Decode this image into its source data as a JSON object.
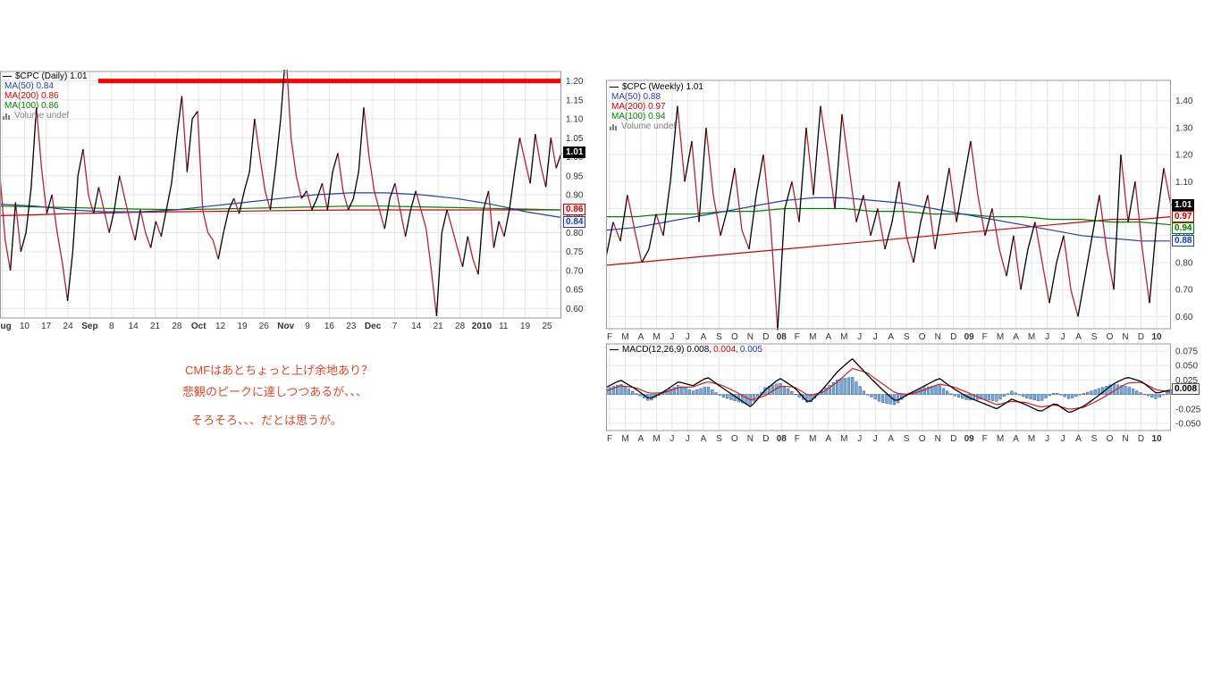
{
  "colors": {
    "price_up": "#000000",
    "price_down": "#b22238",
    "ma50": "#2341a5",
    "ma100": "#008000",
    "ma200": "#cc0000",
    "annotation_red": "#ff0000",
    "grid": "#e6e6e6",
    "border": "#999999",
    "tick_text": "#333333",
    "volume_gray": "#808080",
    "hist_fill": "#7aa8d7",
    "hist_stroke": "#31639c",
    "macd_line": "#000000",
    "signal_line": "#cc2222"
  },
  "annotations": {
    "color": "#d9482e",
    "lines": [
      "CMFはあとちょっと上げ余地あり？",
      "悲観のピークに達しつつあるが、、、",
      "そろそろ、、、だとは思うが。"
    ]
  },
  "chart_data": [
    {
      "id": "daily",
      "type": "line",
      "title": "$CPC (Daily)",
      "legend": {
        "title": "$CPC (Daily) 1.01",
        "ma50": "MA(50) 0.84",
        "ma200": "MA(200) 0.86",
        "ma100": "MA(100) 0.86",
        "volume": "Volume undef"
      },
      "tags": {
        "last": "1.01",
        "ma_upper": "0.86",
        "ma_lower": "0.84"
      },
      "x_ticks": [
        "Aug",
        "10",
        "17",
        "24",
        "Sep",
        "8",
        "14",
        "21",
        "28",
        "Oct",
        "12",
        "19",
        "26",
        "Nov",
        "9",
        "16",
        "23",
        "Dec",
        "7",
        "14",
        "21",
        "28",
        "2010",
        "11",
        "19",
        "25"
      ],
      "bold_ticks": [
        "Aug",
        "Sep",
        "Oct",
        "Nov",
        "Dec",
        "2010"
      ],
      "y_ticks": [
        "1.20",
        "1.15",
        "1.10",
        "1.05",
        "1.00",
        "0.95",
        "0.90",
        "0.85",
        "0.80",
        "0.75",
        "0.70",
        "0.65",
        "0.60"
      ],
      "ylim": [
        0.575,
        1.225
      ],
      "annotation_hline": {
        "value": 1.2,
        "x_start_frac": 0.175,
        "color": "#ff0000",
        "width": 5
      },
      "price": [
        0.95,
        0.78,
        0.7,
        0.88,
        0.75,
        0.8,
        0.92,
        1.13,
        0.97,
        0.85,
        0.9,
        0.8,
        0.72,
        0.62,
        0.75,
        0.95,
        1.02,
        0.9,
        0.85,
        0.92,
        0.86,
        0.8,
        0.86,
        0.95,
        0.89,
        0.83,
        0.78,
        0.86,
        0.8,
        0.76,
        0.83,
        0.79,
        0.86,
        0.93,
        1.05,
        1.16,
        0.96,
        1.1,
        1.12,
        0.86,
        0.8,
        0.78,
        0.73,
        0.8,
        0.86,
        0.89,
        0.85,
        0.91,
        0.96,
        1.1,
        1.0,
        0.91,
        0.86,
        0.97,
        1.1,
        1.28,
        1.05,
        0.95,
        0.89,
        0.91,
        0.86,
        0.89,
        0.93,
        0.86,
        0.96,
        1.01,
        0.91,
        0.86,
        0.89,
        0.96,
        1.13,
        1.0,
        0.91,
        0.86,
        0.81,
        0.89,
        0.93,
        0.86,
        0.79,
        0.86,
        0.91,
        0.86,
        0.81,
        0.7,
        0.58,
        0.8,
        0.86,
        0.81,
        0.76,
        0.71,
        0.79,
        0.73,
        0.69,
        0.86,
        0.91,
        0.76,
        0.83,
        0.79,
        0.86,
        0.96,
        1.05,
        0.99,
        0.93,
        1.06,
        0.98,
        0.92,
        1.05,
        0.97,
        1.01
      ],
      "ma50": [
        0.875,
        0.87,
        0.86,
        0.855,
        0.855,
        0.86,
        0.87,
        0.88,
        0.89,
        0.9,
        0.905,
        0.905,
        0.9,
        0.89,
        0.875,
        0.855,
        0.84
      ],
      "ma100": [
        0.87,
        0.868,
        0.866,
        0.864,
        0.862,
        0.861,
        0.862,
        0.864,
        0.866,
        0.868,
        0.87,
        0.87,
        0.868,
        0.866,
        0.864,
        0.862,
        0.86
      ],
      "ma200": [
        0.845,
        0.847,
        0.85,
        0.852,
        0.854,
        0.855,
        0.856,
        0.857,
        0.858,
        0.859,
        0.86,
        0.86,
        0.86,
        0.86,
        0.86,
        0.86,
        0.86
      ]
    },
    {
      "id": "weekly",
      "type": "line",
      "title": "$CPC (Weekly)",
      "legend": {
        "title": "$CPC (Weekly) 1.01",
        "ma50": "MA(50) 0.88",
        "ma200": "MA(200) 0.97",
        "ma100": "MA(100) 0.94",
        "volume": "Volume undef"
      },
      "tags": {
        "last": "1.01",
        "ma200": "0.97",
        "ma100": "0.94",
        "ma50": "0.88"
      },
      "x_ticks": [
        "F",
        "M",
        "A",
        "M",
        "J",
        "J",
        "A",
        "S",
        "O",
        "N",
        "D",
        "08",
        "F",
        "M",
        "A",
        "M",
        "J",
        "J",
        "A",
        "S",
        "O",
        "N",
        "D",
        "09",
        "F",
        "M",
        "A",
        "M",
        "J",
        "J",
        "A",
        "S",
        "O",
        "N",
        "D",
        "10"
      ],
      "bold_ticks": [
        "08",
        "09",
        "10"
      ],
      "y_ticks": [
        "1.40",
        "1.30",
        "1.20",
        "1.10",
        "1.00",
        "0.90",
        "0.80",
        "0.70",
        "0.60"
      ],
      "ylim": [
        0.555,
        1.475
      ],
      "price": [
        0.82,
        0.95,
        0.88,
        1.05,
        0.92,
        0.8,
        0.85,
        0.98,
        0.9,
        1.1,
        1.38,
        1.1,
        1.25,
        0.95,
        1.3,
        1.05,
        0.9,
        1.0,
        1.15,
        0.92,
        0.85,
        1.05,
        1.2,
        0.95,
        0.55,
        1.0,
        1.1,
        0.95,
        1.3,
        1.05,
        1.38,
        1.2,
        1.0,
        1.35,
        1.15,
        0.95,
        1.05,
        0.9,
        1.0,
        0.85,
        0.95,
        1.1,
        0.9,
        0.8,
        0.95,
        1.05,
        0.85,
        1.0,
        1.15,
        0.95,
        1.1,
        1.25,
        1.05,
        0.9,
        1.0,
        0.85,
        0.75,
        0.9,
        0.7,
        0.85,
        0.95,
        0.8,
        0.65,
        0.8,
        0.9,
        0.7,
        0.6,
        0.75,
        0.9,
        1.05,
        0.85,
        0.7,
        1.2,
        0.95,
        1.1,
        0.85,
        0.65,
        0.95,
        1.15,
        1.01
      ],
      "ma50": [
        0.92,
        0.93,
        0.95,
        0.97,
        0.99,
        1.01,
        1.03,
        1.04,
        1.04,
        1.03,
        1.02,
        1.0,
        0.98,
        0.96,
        0.94,
        0.92,
        0.9,
        0.89,
        0.88,
        0.88
      ],
      "ma100": [
        0.97,
        0.97,
        0.98,
        0.98,
        0.99,
        0.99,
        1.0,
        1.0,
        1.0,
        0.99,
        0.99,
        0.98,
        0.98,
        0.97,
        0.97,
        0.96,
        0.96,
        0.95,
        0.95,
        0.94
      ],
      "ma200": [
        0.79,
        0.8,
        0.81,
        0.82,
        0.83,
        0.84,
        0.85,
        0.86,
        0.87,
        0.88,
        0.89,
        0.9,
        0.91,
        0.92,
        0.93,
        0.94,
        0.95,
        0.96,
        0.96,
        0.97
      ]
    },
    {
      "id": "macd",
      "type": "line+bar",
      "title": "MACD(12,26,9)",
      "legend": {
        "title": "MACD(12,26,9) 0.008,",
        "v2": "0.004,",
        "v3": "0.005"
      },
      "tag": "0.008",
      "values": [
        0.008,
        0.004,
        0.005
      ],
      "x_ticks": [
        "F",
        "M",
        "A",
        "M",
        "J",
        "J",
        "A",
        "S",
        "O",
        "N",
        "D",
        "08",
        "F",
        "M",
        "A",
        "M",
        "J",
        "J",
        "A",
        "S",
        "O",
        "N",
        "D",
        "09",
        "F",
        "M",
        "A",
        "M",
        "J",
        "J",
        "A",
        "S",
        "O",
        "N",
        "D",
        "10"
      ],
      "bold_ticks": [
        "08",
        "09",
        "10"
      ],
      "y_ticks": [
        "0.075",
        "0.050",
        "0.025",
        "-0.025",
        "-0.050"
      ],
      "ylim": [
        -0.0625,
        0.0875
      ],
      "macd": [
        0.012,
        0.025,
        0.01,
        -0.008,
        0.005,
        0.022,
        0.015,
        0.03,
        0.012,
        -0.005,
        -0.022,
        0.008,
        0.028,
        0.012,
        -0.015,
        0.01,
        0.04,
        0.062,
        0.035,
        0.01,
        -0.012,
        0.002,
        0.015,
        0.028,
        0.01,
        -0.005,
        -0.015,
        -0.025,
        -0.008,
        -0.018,
        -0.03,
        -0.015,
        -0.032,
        -0.02,
        -0.002,
        0.018,
        0.03,
        0.022,
        0.002,
        0.008
      ],
      "signal": [
        0.006,
        0.015,
        0.012,
        0.002,
        0.003,
        0.012,
        0.013,
        0.022,
        0.016,
        0.004,
        -0.01,
        -0.002,
        0.014,
        0.013,
        -0.002,
        0.004,
        0.022,
        0.045,
        0.038,
        0.02,
        0.002,
        0.0,
        0.008,
        0.018,
        0.013,
        0.003,
        -0.008,
        -0.018,
        -0.012,
        -0.014,
        -0.022,
        -0.018,
        -0.026,
        -0.022,
        -0.01,
        0.005,
        0.02,
        0.021,
        0.008,
        0.004
      ],
      "histogram": [
        0.01,
        0.018,
        0.003,
        -0.012,
        0.004,
        0.016,
        0.006,
        0.014,
        -0.004,
        -0.012,
        -0.018,
        0.012,
        0.02,
        0.002,
        -0.016,
        0.008,
        0.026,
        0.03,
        0.0,
        -0.014,
        -0.018,
        0.004,
        0.012,
        0.016,
        -0.002,
        -0.01,
        -0.008,
        -0.012,
        0.006,
        -0.006,
        -0.012,
        0.004,
        -0.008,
        0.002,
        0.01,
        0.018,
        0.014,
        0.002,
        -0.008,
        0.008
      ]
    }
  ]
}
